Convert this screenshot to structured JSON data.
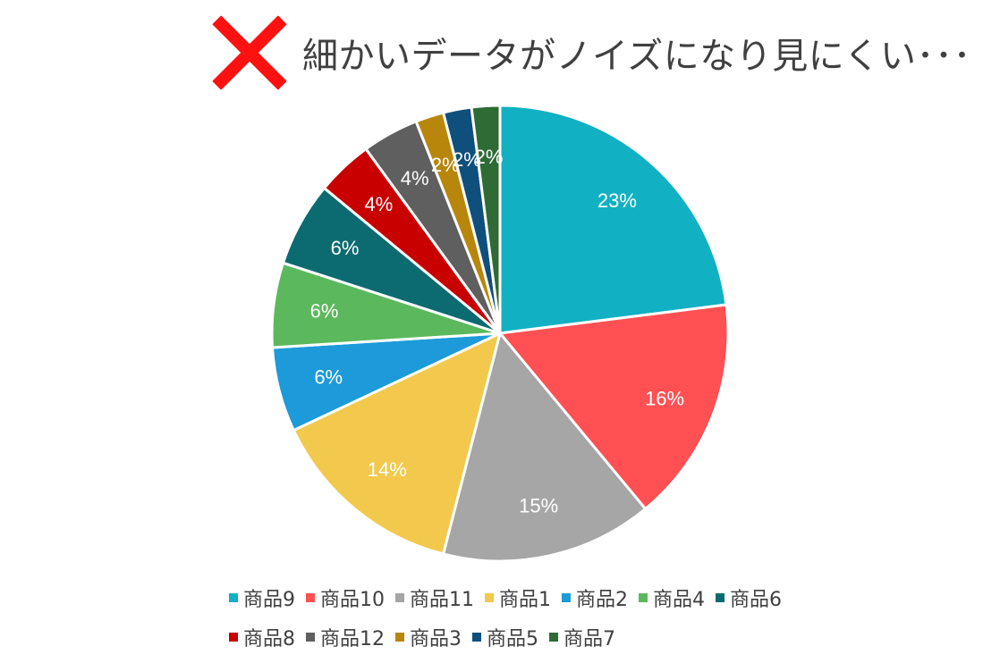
{
  "header": {
    "icon": "cross-icon",
    "text": "細かいデータがノイズになり見にくい･･･",
    "icon_color": "#ff1111"
  },
  "chart_data": {
    "type": "pie",
    "title": "",
    "start_angle_deg": 0,
    "direction": "clockwise",
    "legend_position": "bottom",
    "slices": [
      {
        "name": "商品9",
        "value": 23,
        "label": "23%",
        "color": "#12b0c3"
      },
      {
        "name": "商品10",
        "value": 16,
        "label": "16%",
        "color": "#ff5053"
      },
      {
        "name": "商品11",
        "value": 15,
        "label": "15%",
        "color": "#a6a6a6"
      },
      {
        "name": "商品1",
        "value": 14,
        "label": "14%",
        "color": "#f2c94c"
      },
      {
        "name": "商品2",
        "value": 6,
        "label": "6%",
        "color": "#1c9ad9"
      },
      {
        "name": "商品4",
        "value": 6,
        "label": "6%",
        "color": "#5cb85c"
      },
      {
        "name": "商品6",
        "value": 6,
        "label": "6%",
        "color": "#0b6b70"
      },
      {
        "name": "商品8",
        "value": 4,
        "label": "4%",
        "color": "#c80000"
      },
      {
        "name": "商品12",
        "value": 4,
        "label": "4%",
        "color": "#5f5f5f"
      },
      {
        "name": "商品3",
        "value": 2,
        "label": "2%",
        "color": "#b8860b"
      },
      {
        "name": "商品5",
        "value": 2,
        "label": "2%",
        "color": "#0f4f7c"
      },
      {
        "name": "商品7",
        "value": 2,
        "label": "2%",
        "color": "#2f6b34"
      }
    ]
  }
}
